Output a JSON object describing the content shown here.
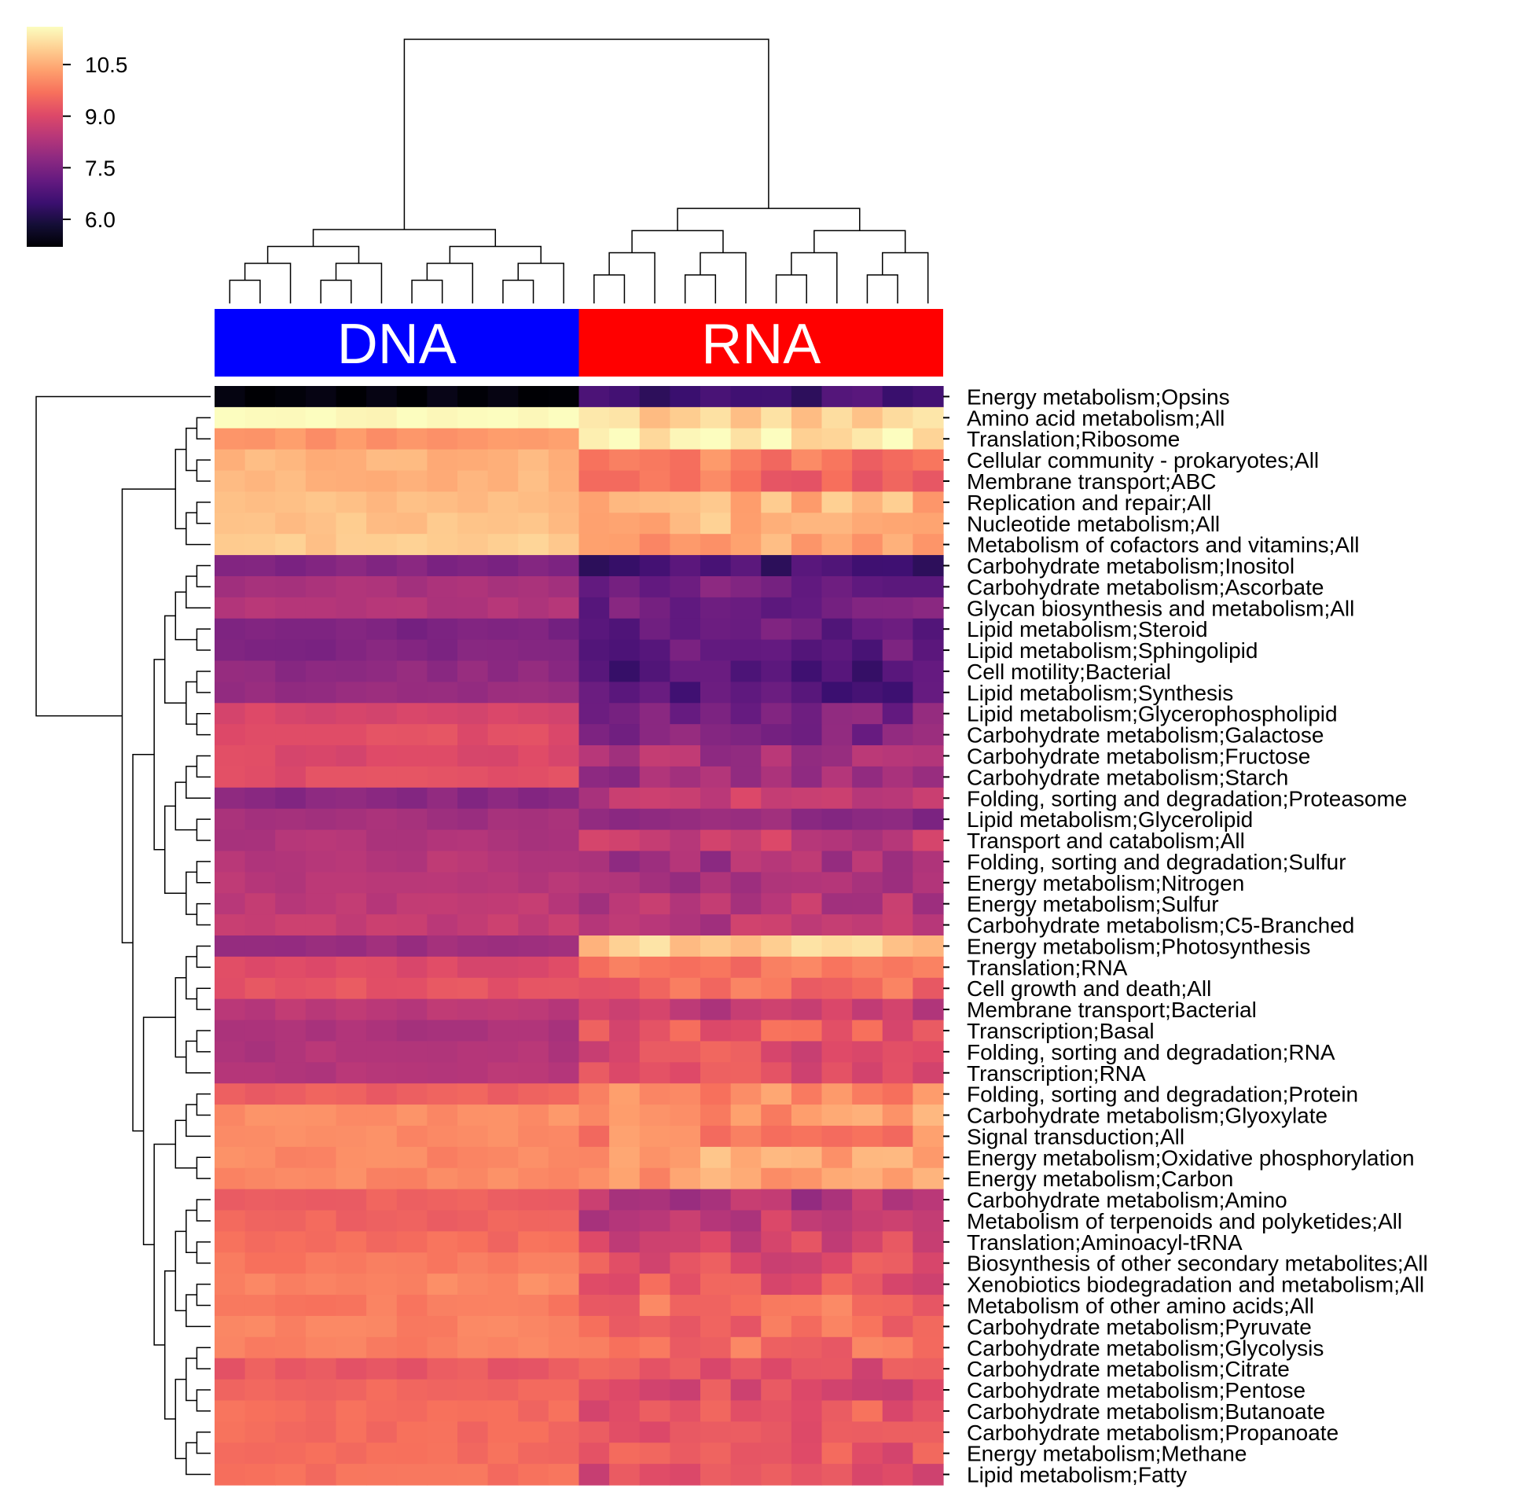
{
  "chart_data": {
    "type": "heatmap",
    "title": "",
    "colormap": "magma",
    "colorbar": {
      "min": 5.2,
      "max": 11.6,
      "ticks": [
        6.0,
        7.5,
        9.0,
        10.5
      ],
      "tick_labels": [
        "6.0",
        "7.5",
        "9.0",
        "10.5"
      ]
    },
    "column_groups": [
      {
        "name": "DNA",
        "label": "DNA",
        "color": "#0000ff",
        "n_columns": 12
      },
      {
        "name": "RNA",
        "label": "RNA",
        "color": "#ff0000",
        "n_columns": 12
      }
    ],
    "rows": [
      {
        "label": "Energy metabolism;Opsins",
        "dna": 5.3,
        "rna": 6.6
      },
      {
        "label": "Amino acid metabolism;All",
        "dna": 11.6,
        "rna": 10.9
      },
      {
        "label": "Translation;Ribosome",
        "dna": 10.2,
        "rna": 11.4
      },
      {
        "label": "Cellular community - prokaryotes;All",
        "dna": 10.6,
        "rna": 9.8
      },
      {
        "label": "Membrane transport;ABC",
        "dna": 10.6,
        "rna": 9.6
      },
      {
        "label": "Replication and repair;All",
        "dna": 10.7,
        "rna": 10.6
      },
      {
        "label": "Nucleotide metabolism;All",
        "dna": 10.8,
        "rna": 10.7
      },
      {
        "label": "Metabolism of cofactors and vitamins;All",
        "dna": 10.9,
        "rna": 10.4
      },
      {
        "label": "Carbohydrate metabolism;Inositol",
        "dna": 7.6,
        "rna": 6.6
      },
      {
        "label": "Carbohydrate metabolism;Ascorbate",
        "dna": 8.2,
        "rna": 7.4
      },
      {
        "label": "Glycan biosynthesis and metabolism;All",
        "dna": 8.3,
        "rna": 7.3
      },
      {
        "label": "Lipid metabolism;Steroid",
        "dna": 7.5,
        "rna": 7.2
      },
      {
        "label": "Lipid metabolism;Sphingolipid",
        "dna": 7.6,
        "rna": 7.1
      },
      {
        "label": "Cell motility;Bacterial",
        "dna": 7.8,
        "rna": 6.8
      },
      {
        "label": "Lipid metabolism;Synthesis",
        "dna": 7.9,
        "rna": 6.8
      },
      {
        "label": "Lipid metabolism;Glycerophospholipid",
        "dna": 8.9,
        "rna": 7.5
      },
      {
        "label": "Carbohydrate metabolism;Galactose",
        "dna": 9.1,
        "rna": 7.6
      },
      {
        "label": "Carbohydrate metabolism;Fructose",
        "dna": 9.0,
        "rna": 8.2
      },
      {
        "label": "Carbohydrate metabolism;Starch",
        "dna": 9.1,
        "rna": 8.1
      },
      {
        "label": "Folding, sorting and degradation;Proteasome",
        "dna": 7.7,
        "rna": 8.6
      },
      {
        "label": "Lipid metabolism;Glycerolipid",
        "dna": 8.1,
        "rna": 7.7
      },
      {
        "label": "Transport and catabolism;All",
        "dna": 8.3,
        "rna": 8.6
      },
      {
        "label": "Folding, sorting and degradation;Sulfur",
        "dna": 8.4,
        "rna": 8.1
      },
      {
        "label": "Energy metabolism;Nitrogen",
        "dna": 8.4,
        "rna": 8.2
      },
      {
        "label": "Energy metabolism;Sulfur",
        "dna": 8.5,
        "rna": 8.4
      },
      {
        "label": "Carbohydrate metabolism;C5-Branched",
        "dna": 8.6,
        "rna": 8.5
      },
      {
        "label": "Energy metabolism;Photosynthesis",
        "dna": 8.0,
        "rna": 10.9
      },
      {
        "label": "Translation;RNA",
        "dna": 9.0,
        "rna": 9.7
      },
      {
        "label": "Cell growth and death;All",
        "dna": 9.2,
        "rna": 9.6
      },
      {
        "label": "Membrane transport;Bacterial",
        "dna": 8.5,
        "rna": 8.6
      },
      {
        "label": "Transcription;Basal",
        "dna": 8.2,
        "rna": 9.3
      },
      {
        "label": "Folding, sorting and degradation;RNA",
        "dna": 8.3,
        "rna": 9.1
      },
      {
        "label": "Transcription;RNA",
        "dna": 8.4,
        "rna": 9.1
      },
      {
        "label": "Folding, sorting and degradation;Protein",
        "dna": 9.4,
        "rna": 10.0
      },
      {
        "label": "Carbohydrate metabolism;Glyoxylate",
        "dna": 10.1,
        "rna": 10.2
      },
      {
        "label": "Signal transduction;All",
        "dna": 10.0,
        "rna": 10.0
      },
      {
        "label": "Energy metabolism;Oxidative phosphorylation",
        "dna": 10.0,
        "rna": 10.4
      },
      {
        "label": "Energy metabolism;Carbon",
        "dna": 10.0,
        "rna": 10.3
      },
      {
        "label": "Carbohydrate metabolism;Amino",
        "dna": 9.4,
        "rna": 8.3
      },
      {
        "label": "Metabolism of terpenoids and polyketides;All",
        "dna": 9.5,
        "rna": 8.6
      },
      {
        "label": "Translation;Aminoacyl-tRNA",
        "dna": 9.6,
        "rna": 8.9
      },
      {
        "label": "Biosynthesis of other secondary metabolites;All",
        "dna": 9.8,
        "rna": 9.1
      },
      {
        "label": "Xenobiotics biodegradation and metabolism;All",
        "dna": 10.0,
        "rna": 9.2
      },
      {
        "label": "Metabolism of other amino acids;All",
        "dna": 9.8,
        "rna": 9.7
      },
      {
        "label": "Carbohydrate metabolism;Pyruvate",
        "dna": 9.9,
        "rna": 9.6
      },
      {
        "label": "Carbohydrate metabolism;Glycolysis",
        "dna": 9.9,
        "rna": 9.6
      },
      {
        "label": "Carbohydrate metabolism;Citrate",
        "dna": 9.3,
        "rna": 9.2
      },
      {
        "label": "Carbohydrate metabolism;Pentose",
        "dna": 9.5,
        "rna": 9.1
      },
      {
        "label": "Carbohydrate metabolism;Butanoate",
        "dna": 9.6,
        "rna": 9.3
      },
      {
        "label": "Carbohydrate metabolism;Propanoate",
        "dna": 9.6,
        "rna": 9.4
      },
      {
        "label": "Energy metabolism;Methane",
        "dna": 9.6,
        "rna": 9.3
      },
      {
        "label": "Lipid metabolism;Fatty",
        "dna": 9.7,
        "rna": 9.0
      }
    ]
  }
}
